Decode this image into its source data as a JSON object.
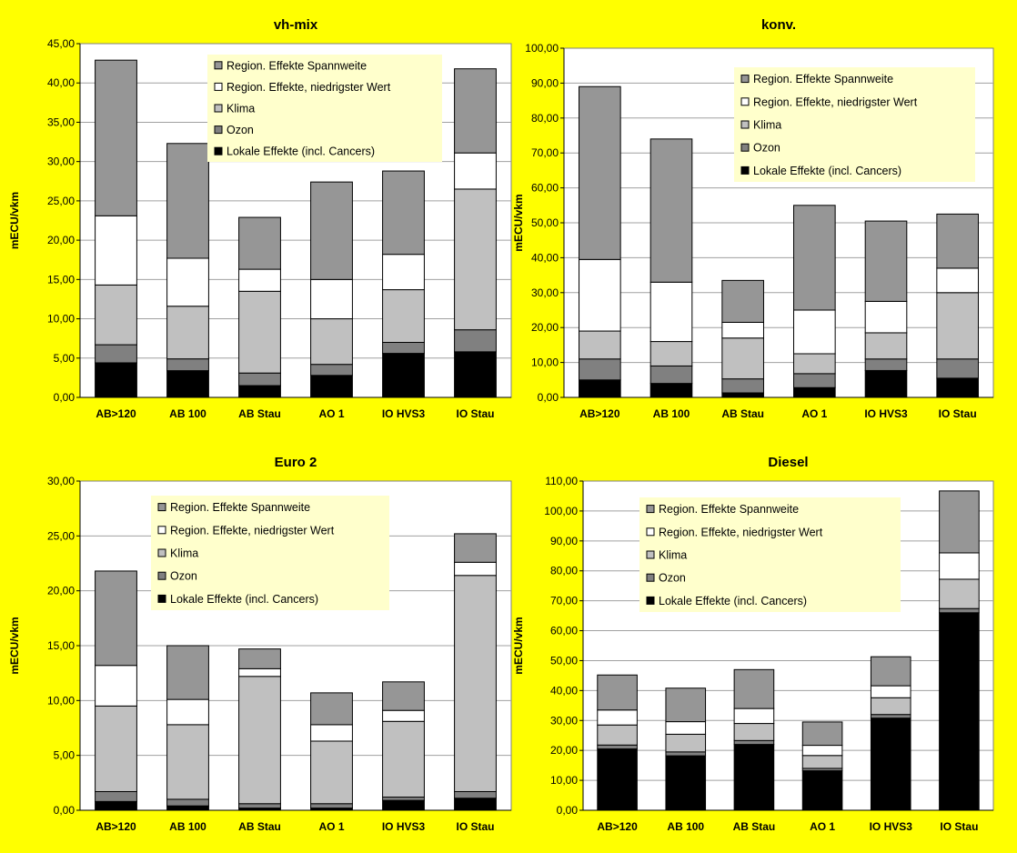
{
  "chart_data": [
    {
      "type": "bar",
      "stacked": true,
      "title": "vh-mix",
      "ylabel": "mECU/vkm",
      "ylim": [
        0,
        45
      ],
      "ytick_step": 5,
      "ytick_labels": [
        "0,00",
        "5,00",
        "10,00",
        "15,00",
        "20,00",
        "25,00",
        "30,00",
        "35,00",
        "40,00",
        "45,00"
      ],
      "grid": true,
      "legend_position": "top-right",
      "categories": [
        "AB>120",
        "AB 100",
        "AB Stau",
        "AO 1",
        "IO HVS3",
        "IO Stau"
      ],
      "series": [
        {
          "name": "Lokale Effekte (incl. Cancers)",
          "color": "#000000",
          "values": [
            4.4,
            3.4,
            1.5,
            2.8,
            5.6,
            5.8
          ]
        },
        {
          "name": "Ozon",
          "color": "#808080",
          "values": [
            2.3,
            1.5,
            1.6,
            1.4,
            1.4,
            2.8
          ]
        },
        {
          "name": "Klima",
          "color": "#c0c0c0",
          "values": [
            7.6,
            6.7,
            10.4,
            5.8,
            6.7,
            17.9
          ]
        },
        {
          "name": "Region. Effekte, niedrigster Wert",
          "color": "#ffffff",
          "values": [
            8.8,
            6.1,
            2.8,
            5.0,
            4.5,
            4.6
          ]
        },
        {
          "name": "Region. Effekte Spannweite",
          "color": "#969696",
          "values": [
            19.8,
            14.6,
            6.6,
            12.4,
            10.6,
            10.7
          ]
        }
      ]
    },
    {
      "type": "bar",
      "stacked": true,
      "title": "konv.",
      "ylabel": "mECU/vkm",
      "ylim": [
        0,
        100
      ],
      "ytick_step": 10,
      "ytick_labels": [
        "0,00",
        "10,00",
        "20,00",
        "30,00",
        "40,00",
        "50,00",
        "60,00",
        "70,00",
        "80,00",
        "90,00",
        "100,00"
      ],
      "grid": true,
      "legend_position": "top-right",
      "categories": [
        "AB>120",
        "AB 100",
        "AB Stau",
        "AO 1",
        "IO HVS3",
        "IO Stau"
      ],
      "series": [
        {
          "name": "Lokale Effekte (incl. Cancers)",
          "color": "#000000",
          "values": [
            5.0,
            4.0,
            1.3,
            2.8,
            7.7,
            5.5
          ]
        },
        {
          "name": "Ozon",
          "color": "#808080",
          "values": [
            6.0,
            5.0,
            4.0,
            4.0,
            3.3,
            5.5
          ]
        },
        {
          "name": "Klima",
          "color": "#c0c0c0",
          "values": [
            8.0,
            7.0,
            11.7,
            5.7,
            7.5,
            19.0
          ]
        },
        {
          "name": "Region. Effekte, niedrigster Wert",
          "color": "#ffffff",
          "values": [
            20.5,
            17.0,
            4.5,
            12.5,
            9.0,
            7.0
          ]
        },
        {
          "name": "Region. Effekte Spannweite",
          "color": "#969696",
          "values": [
            49.5,
            41.0,
            12.0,
            30.0,
            23.0,
            15.5
          ]
        }
      ]
    },
    {
      "type": "bar",
      "stacked": true,
      "title": "Euro 2",
      "ylabel": "mECU/vkm",
      "ylim": [
        0,
        30
      ],
      "ytick_step": 5,
      "ytick_labels": [
        "0,00",
        "5,00",
        "10,00",
        "15,00",
        "20,00",
        "25,00",
        "30,00"
      ],
      "grid": true,
      "legend_position": "top-right",
      "categories": [
        "AB>120",
        "AB 100",
        "AB Stau",
        "AO 1",
        "IO HVS3",
        "IO Stau"
      ],
      "series": [
        {
          "name": "Lokale Effekte (incl. Cancers)",
          "color": "#000000",
          "values": [
            0.8,
            0.4,
            0.2,
            0.2,
            0.9,
            1.1
          ]
        },
        {
          "name": "Ozon",
          "color": "#808080",
          "values": [
            0.9,
            0.6,
            0.4,
            0.4,
            0.3,
            0.6
          ]
        },
        {
          "name": "Klima",
          "color": "#c0c0c0",
          "values": [
            7.8,
            6.8,
            11.6,
            5.7,
            6.9,
            19.7
          ]
        },
        {
          "name": "Region. Effekte, niedrigster Wert",
          "color": "#ffffff",
          "values": [
            3.7,
            2.3,
            0.7,
            1.5,
            1.0,
            1.2
          ]
        },
        {
          "name": "Region. Effekte Spannweite",
          "color": "#969696",
          "values": [
            8.6,
            4.9,
            1.8,
            2.9,
            2.6,
            2.6
          ]
        }
      ]
    },
    {
      "type": "bar",
      "stacked": true,
      "title": "Diesel",
      "ylabel": "mECU/vkm",
      "ylim": [
        0,
        110
      ],
      "ytick_step": 10,
      "ytick_labels": [
        "0,00",
        "10,00",
        "20,00",
        "30,00",
        "40,00",
        "50,00",
        "60,00",
        "70,00",
        "80,00",
        "90,00",
        "100,00",
        "110,00"
      ],
      "grid": true,
      "legend_position": "top-left",
      "categories": [
        "AB>120",
        "AB 100",
        "AB Stau",
        "AO 1",
        "IO HVS3",
        "IO Stau"
      ],
      "series": [
        {
          "name": "Lokale Effekte (incl. Cancers)",
          "color": "#000000",
          "values": [
            20.5,
            18.2,
            22.0,
            13.2,
            30.8,
            66.0
          ]
        },
        {
          "name": "Ozon",
          "color": "#808080",
          "values": [
            1.3,
            1.3,
            1.3,
            0.8,
            1.2,
            1.4
          ]
        },
        {
          "name": "Klima",
          "color": "#c0c0c0",
          "values": [
            6.7,
            5.9,
            5.7,
            4.3,
            5.6,
            9.8
          ]
        },
        {
          "name": "Region. Effekte, niedrigster Wert",
          "color": "#ffffff",
          "values": [
            5.0,
            4.2,
            5.0,
            3.4,
            4.0,
            8.8
          ]
        },
        {
          "name": "Region. Effekte Spannweite",
          "color": "#969696",
          "values": [
            11.7,
            11.2,
            13.0,
            7.8,
            9.7,
            20.7
          ]
        }
      ]
    }
  ]
}
